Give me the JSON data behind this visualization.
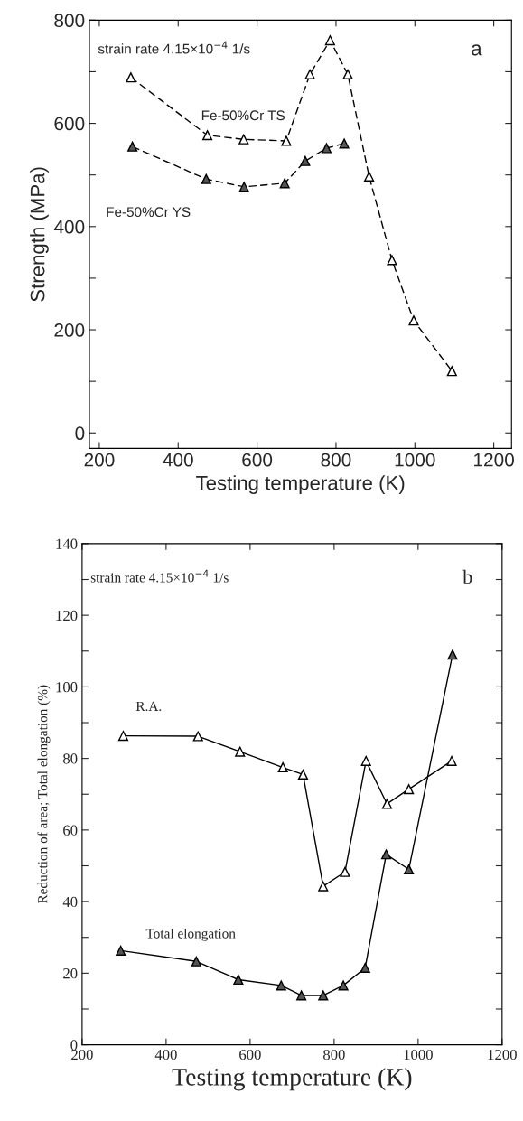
{
  "chart_data": [
    {
      "type": "line",
      "xlabel": "Testing temperature (K)",
      "ylabel": "Strength (MPa)",
      "xlim": [
        175,
        1245
      ],
      "ylim": [
        -30,
        800
      ],
      "xticks": [
        200,
        400,
        600,
        800,
        1000,
        1200
      ],
      "yticks": [
        0,
        {
          "value": 100,
          "label": null
        },
        200,
        {
          "value": 300,
          "label": null
        },
        400,
        {
          "value": 500,
          "label": null
        },
        600,
        {
          "value": 700,
          "label": null
        },
        800
      ],
      "grid": false,
      "legend": false,
      "line_style": "dashed",
      "marker": "triangle",
      "annotations": [
        "strain rate 4.15×10$^{−4}$ 1/s",
        "a"
      ],
      "series": [
        {
          "name": "Fe-50%Cr TS",
          "color": "#000000",
          "x": [
            280,
            474,
            566,
            674,
            734,
            785,
            830,
            884,
            942,
            997,
            1094
          ],
          "values": [
            689,
            577,
            569,
            566,
            695,
            761,
            695,
            497,
            335,
            218,
            120
          ]
        },
        {
          "name": "Fe-50%Cr YS",
          "color": "#000000",
          "x": [
            284,
            471,
            567,
            670,
            722,
            776,
            821
          ],
          "values": [
            555,
            492,
            477,
            484,
            527,
            552,
            561
          ]
        }
      ]
    },
    {
      "type": "line",
      "xlabel": "Testing temperature (K)",
      "ylabel": "Reduction of area; Total elongation (%)",
      "xlim": [
        200,
        1200
      ],
      "ylim": [
        0,
        140
      ],
      "xticks": [
        200,
        400,
        600,
        800,
        1000,
        1200
      ],
      "yticks": [
        0,
        {
          "value": 10,
          "label": null
        },
        20,
        {
          "value": 30,
          "label": null
        },
        40,
        {
          "value": 50,
          "label": null
        },
        60,
        {
          "value": 70,
          "label": null
        },
        80,
        {
          "value": 90,
          "label": null
        },
        100,
        {
          "value": 110,
          "label": null
        },
        120,
        {
          "value": 130,
          "label": null
        },
        140
      ],
      "grid": false,
      "legend": false,
      "line_style": "solid",
      "marker": "triangle",
      "annotations": [
        "strain rate 4.15×10$^{−4}$ 1/s",
        "b"
      ],
      "series": [
        {
          "name": "R.A.",
          "color": "#000000",
          "x": [
            298,
            476,
            576,
            678,
            726,
            774,
            826,
            876,
            926,
            978,
            1080
          ],
          "values": [
            86.3,
            86.2,
            81.9,
            77.5,
            75.5,
            44.3,
            48.3,
            79.3,
            67.3,
            71.4,
            79.3
          ]
        },
        {
          "name": "Total elongation",
          "color": "#000000",
          "x": [
            292,
            472,
            572,
            674,
            722,
            774,
            822,
            874,
            924,
            978,
            1082
          ],
          "values": [
            26.3,
            23.3,
            18.2,
            16.6,
            13.8,
            13.8,
            16.6,
            21.5,
            53.2,
            49.0,
            109.0
          ]
        }
      ]
    }
  ]
}
